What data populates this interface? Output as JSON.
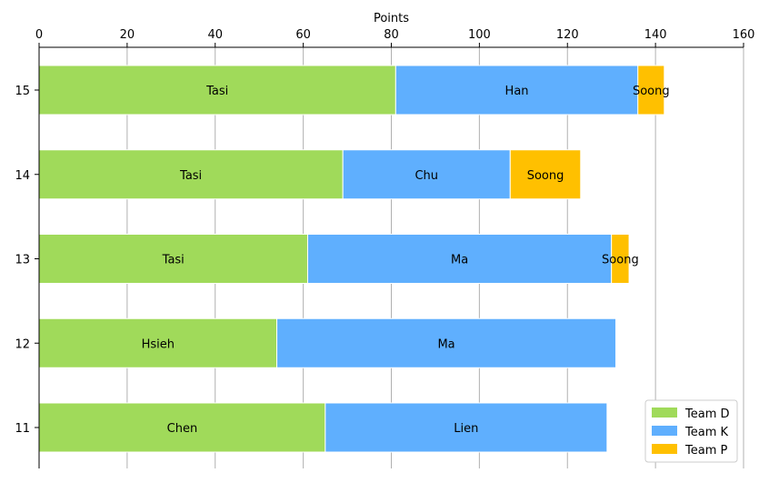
{
  "chart_data": {
    "type": "bar",
    "orientation": "horizontal",
    "stacked": true,
    "title": "",
    "xlabel": "Points",
    "ylabel": "",
    "xlim": [
      0,
      160
    ],
    "x_ticks": [
      0,
      20,
      40,
      60,
      80,
      100,
      120,
      140,
      160
    ],
    "x_axis_position": "top",
    "grid": "x",
    "legend_placement": "bottom-right",
    "categories": [
      "11",
      "12",
      "13",
      "14",
      "15"
    ],
    "series": [
      {
        "name": "Team D",
        "color": "#a0da5a",
        "values": [
          65,
          54,
          61,
          69,
          81
        ],
        "labels": [
          "Chen",
          "Hsieh",
          "Tasi",
          "Tasi",
          "Tasi"
        ]
      },
      {
        "name": "Team K",
        "color": "#5faffe",
        "values": [
          64,
          77,
          69,
          38,
          55
        ],
        "labels": [
          "Lien",
          "Ma",
          "Ma",
          "Chu",
          "Han"
        ]
      },
      {
        "name": "Team P",
        "color": "#ffc000",
        "values": [
          0,
          0,
          4,
          16,
          6
        ],
        "labels": [
          "",
          "",
          "Soong",
          "Soong",
          "Soong"
        ]
      }
    ]
  }
}
